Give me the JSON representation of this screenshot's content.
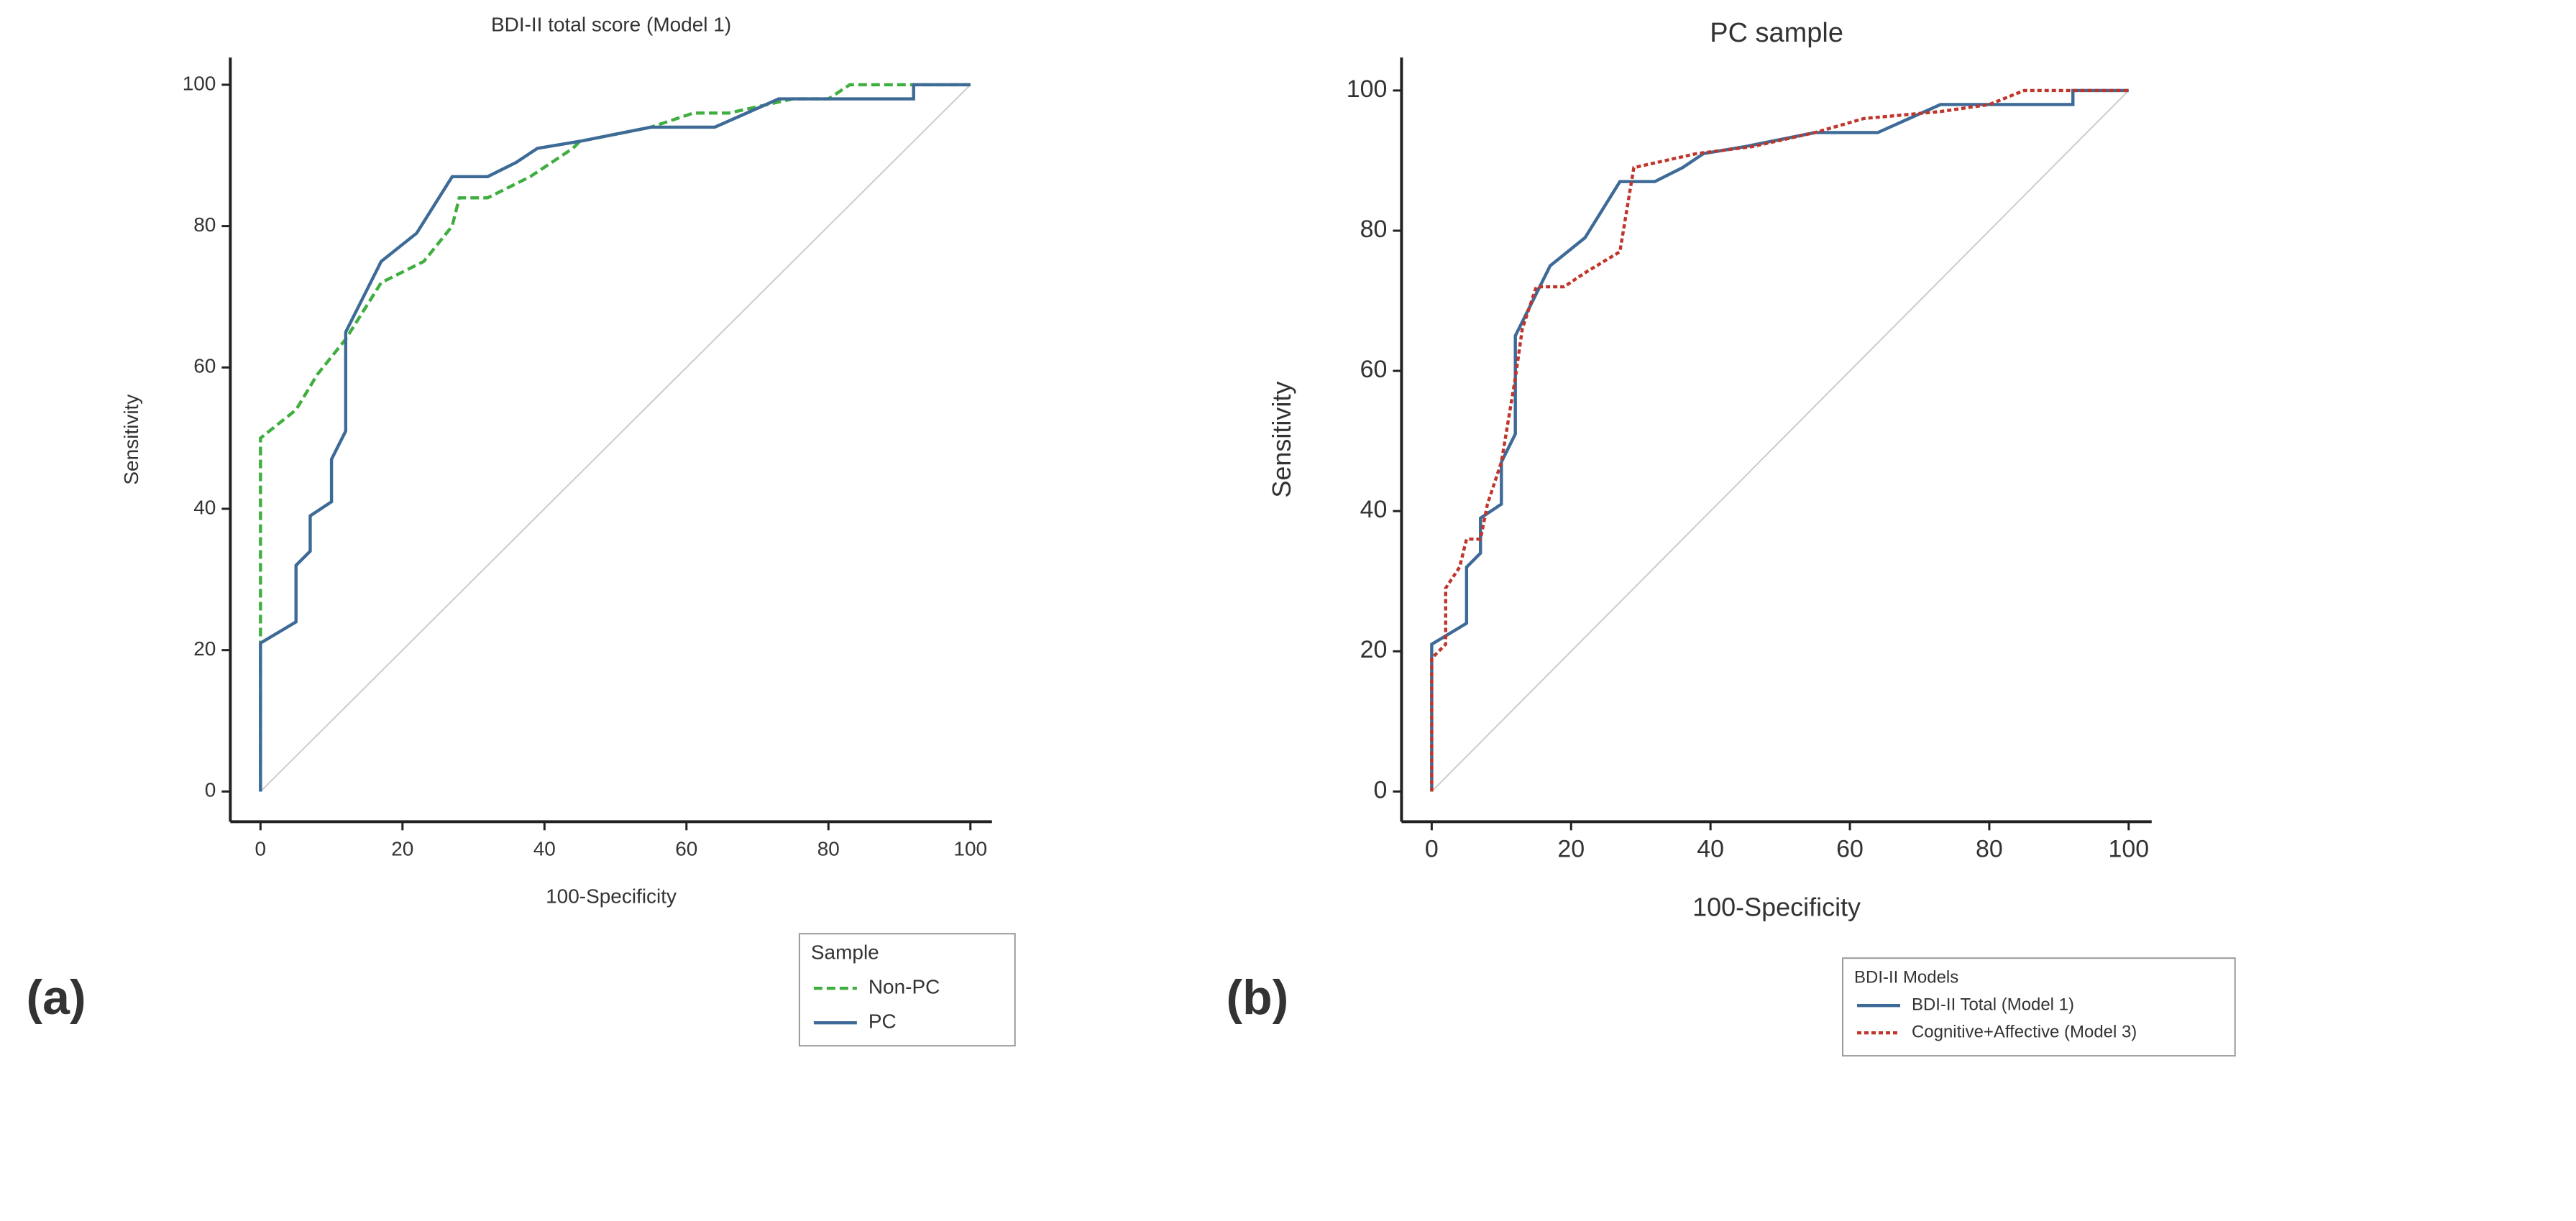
{
  "chart_data": [
    {
      "type": "line",
      "panel_label": "(a)",
      "title": "BDI-II total score (Model 1)",
      "xlabel": "100-Specificity",
      "ylabel": "Sensitivity",
      "xlim": [
        0,
        100
      ],
      "ylim": [
        0,
        100
      ],
      "xticks": [
        0,
        20,
        40,
        60,
        80,
        100
      ],
      "yticks": [
        0,
        20,
        40,
        60,
        80,
        100
      ],
      "legend_title": "Sample",
      "legend": "bottom-right",
      "series": [
        {
          "name": "Non-PC",
          "color": "#3fae3f",
          "style": "dashed",
          "x": [
            0,
            0,
            5,
            8,
            12,
            17,
            23,
            27,
            28,
            32,
            38,
            44,
            45,
            55,
            61,
            66,
            75,
            80,
            83,
            100
          ],
          "values": [
            0,
            50,
            54,
            59,
            64,
            72,
            75,
            80,
            84,
            84,
            87,
            91,
            92,
            94,
            96,
            96,
            98,
            98,
            100,
            100
          ]
        },
        {
          "name": "PC",
          "color": "#3d6a96",
          "style": "solid",
          "x": [
            0,
            0,
            5,
            5,
            7,
            7,
            10,
            10,
            12,
            12,
            17,
            22,
            27,
            32,
            36,
            39,
            45,
            55,
            64,
            73,
            92,
            92,
            100
          ],
          "values": [
            0,
            21,
            24,
            32,
            34,
            39,
            41,
            47,
            51,
            65,
            75,
            79,
            87,
            87,
            89,
            91,
            92,
            94,
            94,
            98,
            98,
            100,
            100
          ]
        }
      ]
    },
    {
      "type": "line",
      "panel_label": "(b)",
      "title": "PC sample",
      "xlabel": "100-Specificity",
      "ylabel": "Sensitivity",
      "xlim": [
        0,
        100
      ],
      "ylim": [
        0,
        100
      ],
      "xticks": [
        0,
        20,
        40,
        60,
        80,
        100
      ],
      "yticks": [
        0,
        20,
        40,
        60,
        80,
        100
      ],
      "legend_title": "BDI-II Models",
      "legend": "bottom-right",
      "series": [
        {
          "name": "BDI-II Total (Model 1)",
          "color": "#3d6a96",
          "style": "solid",
          "x": [
            0,
            0,
            5,
            5,
            7,
            7,
            10,
            10,
            12,
            12,
            17,
            22,
            27,
            32,
            36,
            39,
            45,
            55,
            64,
            73,
            92,
            92,
            100
          ],
          "values": [
            0,
            21,
            24,
            32,
            34,
            39,
            41,
            47,
            51,
            65,
            75,
            79,
            87,
            87,
            89,
            91,
            92,
            94,
            94,
            98,
            98,
            100,
            100
          ]
        },
        {
          "name": "Cognitive+Affective (Model 3)",
          "color": "#c0352b",
          "style": "dotted",
          "x": [
            0,
            0,
            2,
            2,
            4,
            5,
            7,
            8,
            10,
            12,
            13,
            15,
            19,
            22,
            27,
            29,
            38,
            46,
            55,
            62,
            73,
            80,
            85,
            100
          ],
          "values": [
            0,
            19,
            21,
            29,
            32,
            36,
            36,
            41,
            47,
            59,
            66,
            72,
            72,
            74,
            77,
            89,
            91,
            92,
            94,
            96,
            97,
            98,
            100,
            100
          ]
        }
      ]
    }
  ]
}
